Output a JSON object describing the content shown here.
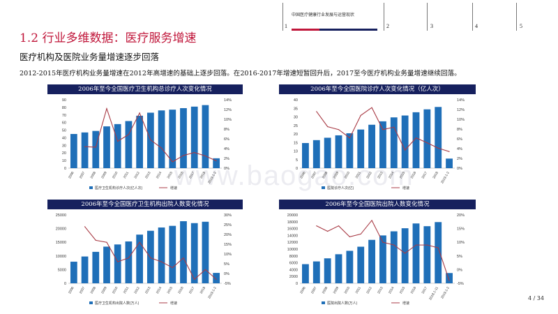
{
  "header": {
    "nav_subtitle": "中国医疗健康行业发展与运营现状",
    "nav_numbers": [
      "1",
      "2",
      "3",
      "4",
      "5"
    ]
  },
  "title": "1.2 行业多维数据：医疗服务增速",
  "subtitle": "医疗机构及医院业务量增速逐步回落",
  "description": "2012-2015年医疗机构业务量增速在2012年高增速的基础上逐步回落。在2016-2017年增速短暂回升后，2017至今医疗机构业务量增速继续回落。",
  "page_number": "4 / 34",
  "watermark": "www.baogao.com",
  "colors": {
    "bar": "#1f6fb8",
    "line": "#a83a44",
    "title_bg": "#16205e",
    "accent": "#c0163a"
  },
  "chart_data": [
    {
      "type": "bar",
      "title": "2006年至今全国医疗卫生机构总诊疗人次变化情况",
      "categories": [
        "2006",
        "2007",
        "2008",
        "2009",
        "2010",
        "2011",
        "2012",
        "2013",
        "2014",
        "2015",
        "2016",
        "2017",
        "2018",
        "2019.1-2"
      ],
      "series": [
        {
          "name": "医疗卫生机构诊疗人次(亿人次)",
          "values": [
            45,
            47,
            49,
            55,
            58,
            62,
            69,
            73,
            76,
            77,
            79,
            81,
            83,
            13
          ]
        },
        {
          "name": "增速",
          "axis": "right",
          "values": [
            null,
            4.4,
            4.3,
            12.2,
            5.5,
            6.9,
            11.3,
            5.8,
            4.1,
            1.3,
            2.6,
            3.2,
            2.5,
            1.5
          ]
        }
      ],
      "ylim": [
        0,
        90
      ],
      "yticks": [
        0,
        10,
        20,
        30,
        40,
        50,
        60,
        70,
        80,
        90
      ],
      "y2lim": [
        0,
        14
      ],
      "y2ticks": [
        "0%",
        "2%",
        "4%",
        "6%",
        "8%",
        "10%",
        "12%",
        "14%"
      ]
    },
    {
      "type": "bar",
      "title": "2006年至今全国医院诊疗人次变化情况（亿人次）",
      "categories": [
        "2006",
        "2007",
        "2008",
        "2009",
        "2010",
        "2011",
        "2012",
        "2013",
        "2014",
        "2015",
        "2016",
        "2017",
        "2018",
        "2019.1-2"
      ],
      "series": [
        {
          "name": "医院诊疗人次(亿)",
          "values": [
            14.7,
            16.4,
            17.8,
            19.2,
            20.4,
            22.6,
            25.4,
            27.4,
            29.7,
            30.8,
            32.7,
            34.4,
            35.8,
            5.6
          ]
        },
        {
          "name": "增速",
          "axis": "right",
          "values": [
            null,
            11.6,
            8.5,
            7.9,
            6.2,
            10.8,
            12.4,
            7.9,
            8.4,
            3.7,
            6.2,
            5.2,
            4.1,
            3.4
          ]
        }
      ],
      "ylim": [
        0,
        40
      ],
      "yticks": [
        0,
        5,
        10,
        15,
        20,
        25,
        30,
        35,
        40
      ],
      "y2lim": [
        0,
        14
      ],
      "y2ticks": [
        "0%",
        "2%",
        "4%",
        "6%",
        "8%",
        "10%",
        "12%",
        "14%"
      ]
    },
    {
      "type": "bar",
      "title": "2006年至今全国医疗卫生机构出院人数变化情况",
      "categories": [
        "2006",
        "2007",
        "2008",
        "2009",
        "2010",
        "2011",
        "2012",
        "2013",
        "2014",
        "2015",
        "2016",
        "2017",
        "2018",
        "2019.1-2"
      ],
      "series": [
        {
          "name": "医疗卫生机构出院人数(万人)",
          "values": [
            7900,
            9800,
            11500,
            13400,
            14200,
            15300,
            17800,
            19200,
            20400,
            21000,
            22700,
            22000,
            22500,
            3800
          ]
        },
        {
          "name": "增速",
          "axis": "right",
          "values": [
            null,
            24,
            17,
            16,
            6,
            8,
            16,
            8,
            6,
            3,
            8,
            -3,
            2,
            -3
          ]
        }
      ],
      "ylim": [
        0,
        25000
      ],
      "yticks": [
        0,
        5000,
        10000,
        15000,
        20000,
        25000
      ],
      "y2lim": [
        -5,
        30
      ],
      "y2ticks": [
        "-5%",
        "0%",
        "5%",
        "10%",
        "15%",
        "20%",
        "25%",
        "30%"
      ]
    },
    {
      "type": "bar",
      "title": "2006年至今全国医院出院人数变化情况",
      "categories": [
        "2006",
        "2007",
        "2008",
        "2009",
        "2010",
        "2011",
        "2012",
        "2013",
        "2014",
        "2015",
        "2016",
        "2017",
        "2018.1-11",
        "2019.1-2"
      ],
      "series": [
        {
          "name": "医院出院人数(万人)",
          "values": [
            5600,
            6400,
            7300,
            8500,
            9500,
            10700,
            12700,
            14000,
            15200,
            16100,
            17500,
            16700,
            17900,
            3000
          ]
        },
        {
          "name": "增速",
          "axis": "right",
          "values": [
            null,
            16,
            14,
            16,
            12,
            13,
            18,
            10,
            9,
            6,
            9,
            9,
            8,
            -4
          ]
        }
      ],
      "ylim": [
        0,
        20000
      ],
      "yticks": [
        0,
        2000,
        4000,
        6000,
        8000,
        10000,
        12000,
        14000,
        16000,
        18000,
        20000
      ],
      "y2lim": [
        -5,
        20
      ],
      "y2ticks": [
        "-5%",
        "0%",
        "5%",
        "10%",
        "15%",
        "20%"
      ]
    }
  ]
}
